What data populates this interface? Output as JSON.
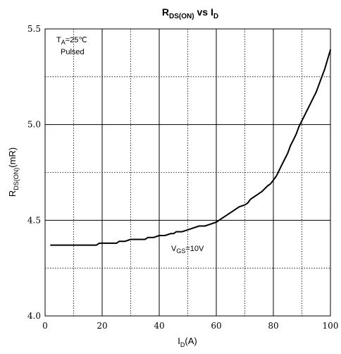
{
  "chart_data": {
    "type": "line",
    "title": {
      "main": "R",
      "sub": "DS(ON)",
      "mid": " vs I",
      "sub2": "D"
    },
    "xlabel": {
      "main": "I",
      "sub": "D",
      "tail": "(A)"
    },
    "ylabel": {
      "main": "R",
      "sub": "DS(ON)",
      "tail": "(mR)"
    },
    "xlim": [
      0,
      100
    ],
    "ylim": [
      4.0,
      5.5
    ],
    "x_ticks": [
      0,
      20,
      40,
      60,
      80,
      100
    ],
    "x_tick_labels": [
      "0",
      "20",
      "40",
      "60",
      "80",
      "100"
    ],
    "y_ticks": [
      4.0,
      4.5,
      5.0,
      5.5
    ],
    "y_tick_labels": [
      "4.0",
      "4.5",
      "5.0",
      "5.5"
    ],
    "grid": {
      "major_x": [
        20,
        40,
        60,
        80
      ],
      "major_y": [
        4.5,
        5.0
      ],
      "minor_x": [
        10,
        30,
        50,
        70,
        90
      ],
      "minor_y": [
        4.25,
        4.75,
        5.25
      ],
      "major_style": "solid",
      "minor_style": "dotted"
    },
    "annotations": {
      "condition_line1": {
        "main": "T",
        "sub": "A",
        "tail": "=25℃"
      },
      "condition_line2": "Pulsed",
      "vgs": {
        "main": "V",
        "sub": "GS",
        "tail": "=10V"
      }
    },
    "series": [
      {
        "color": "#000000",
        "x": [
          2,
          5,
          10,
          15,
          18,
          19,
          20,
          22,
          25,
          26,
          28,
          30,
          32,
          35,
          36,
          38,
          40,
          42,
          44,
          45,
          46,
          48,
          50,
          52,
          54,
          56,
          58,
          60,
          62,
          64,
          66,
          68,
          70,
          71,
          72,
          74,
          76,
          78,
          79,
          80,
          81,
          82,
          83,
          84,
          85,
          86,
          87,
          88,
          89,
          90,
          91,
          92,
          93,
          94,
          95,
          96,
          97,
          98,
          99,
          100
        ],
        "y": [
          4.37,
          4.37,
          4.37,
          4.37,
          4.37,
          4.38,
          4.38,
          4.38,
          4.38,
          4.39,
          4.39,
          4.4,
          4.4,
          4.4,
          4.41,
          4.41,
          4.42,
          4.42,
          4.43,
          4.43,
          4.44,
          4.44,
          4.45,
          4.46,
          4.47,
          4.47,
          4.48,
          4.49,
          4.51,
          4.53,
          4.55,
          4.57,
          4.58,
          4.59,
          4.61,
          4.63,
          4.65,
          4.68,
          4.69,
          4.71,
          4.73,
          4.76,
          4.79,
          4.82,
          4.85,
          4.89,
          4.92,
          4.95,
          4.99,
          5.02,
          5.05,
          5.08,
          5.11,
          5.14,
          5.17,
          5.21,
          5.25,
          5.29,
          5.34,
          5.39
        ]
      }
    ]
  }
}
